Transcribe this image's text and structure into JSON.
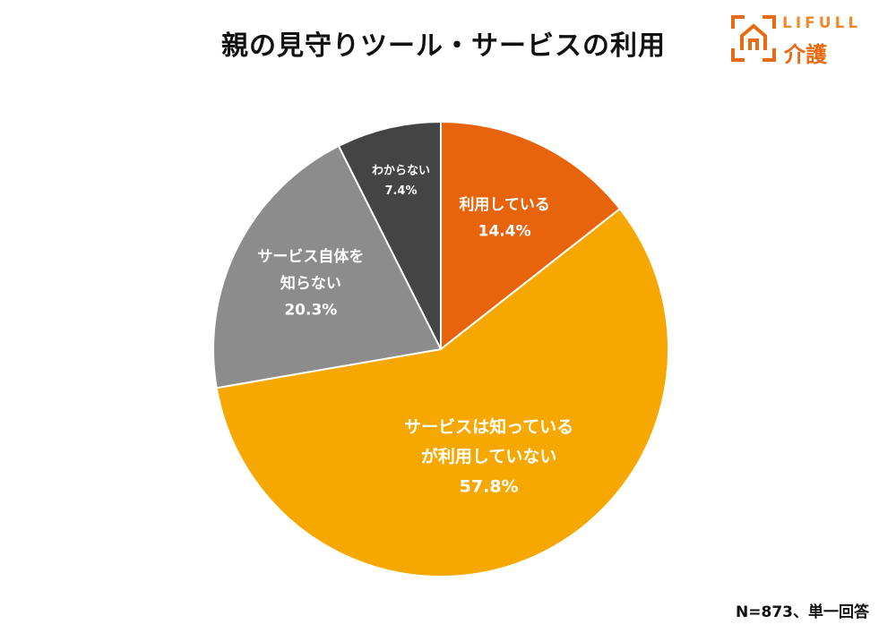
{
  "title": "親の見守りツール・サービスの利用",
  "logo": {
    "wordmark": "LIFULL",
    "sub": "介護",
    "icon": "house-frame-icon",
    "color": "#e86a12"
  },
  "note": "N=873、単一回答",
  "chart_data": {
    "type": "pie",
    "title": "親の見守りツール・サービスの利用",
    "start": "12 o'clock",
    "direction": "clockwise",
    "slices": [
      {
        "label": "利用している",
        "lines": [
          "利用している"
        ],
        "value": 14.4,
        "value_label": "14.4%",
        "color": "#e8640c"
      },
      {
        "label": "サービスは知っているが利用していない",
        "lines": [
          "サービスは知っている",
          "が利用していない"
        ],
        "value": 57.8,
        "value_label": "57.8%",
        "color": "#f7a800"
      },
      {
        "label": "サービス自体を知らない",
        "lines": [
          "サービス自体を",
          "知らない"
        ],
        "value": 20.3,
        "value_label": "20.3%",
        "color": "#8c8c8c"
      },
      {
        "label": "わからない",
        "lines": [
          "わからない"
        ],
        "value": 7.4,
        "value_label": "7.4%",
        "color": "#444444"
      }
    ]
  }
}
